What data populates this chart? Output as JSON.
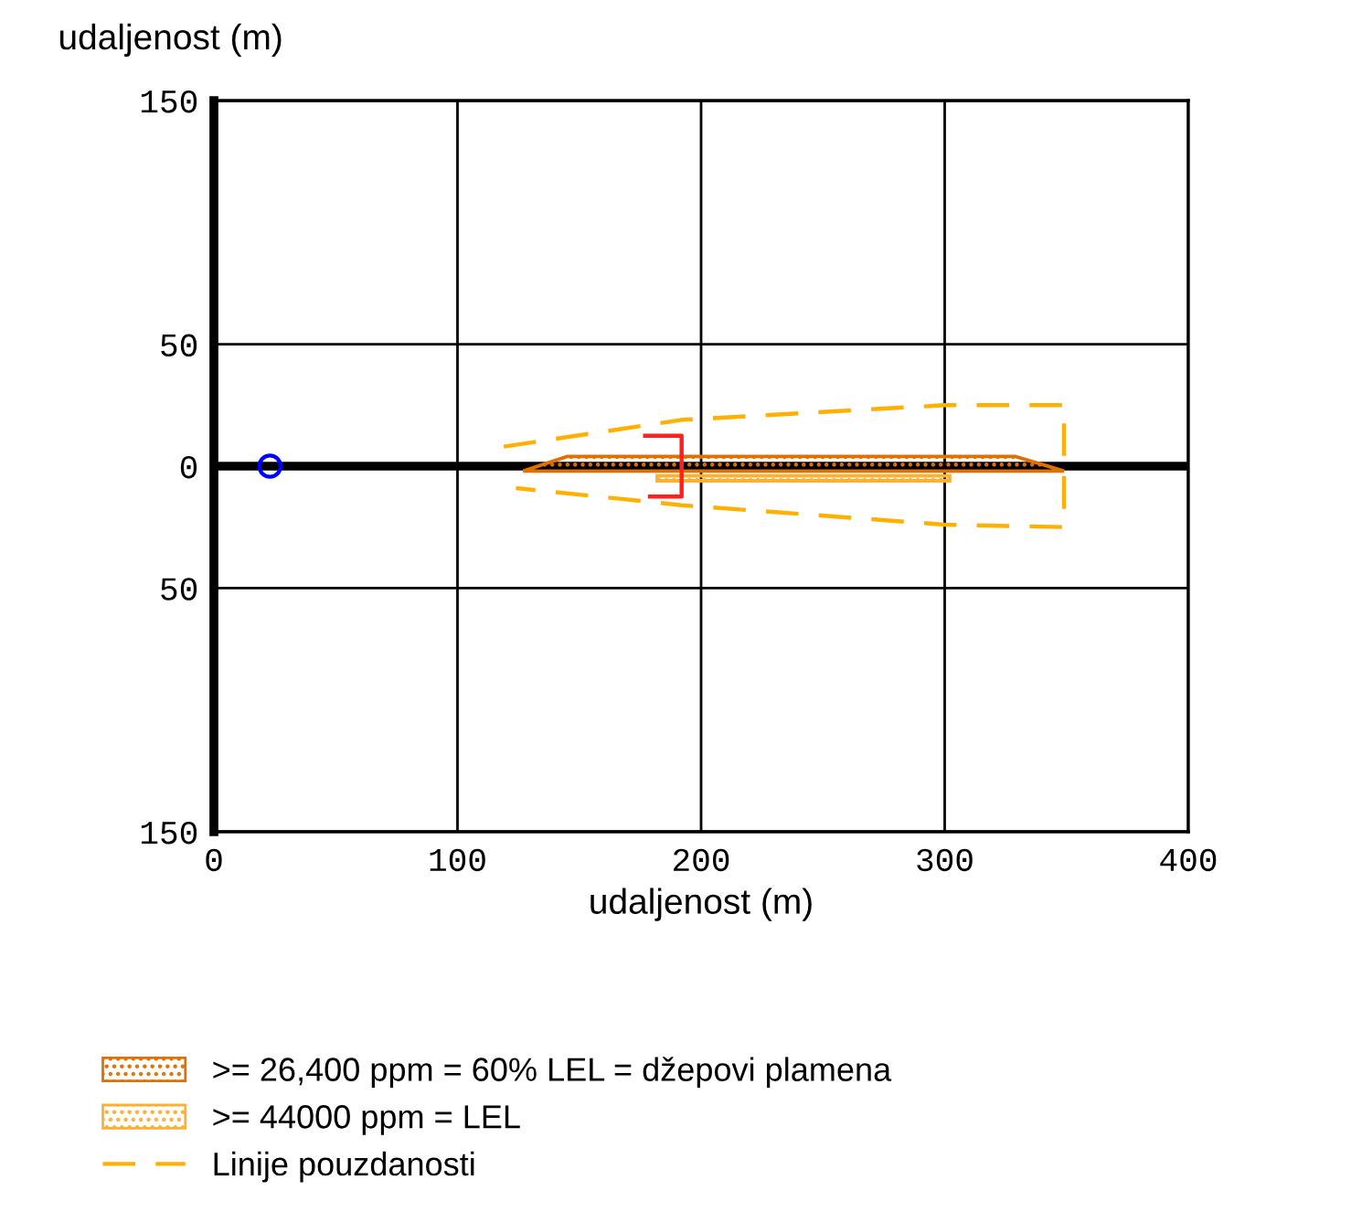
{
  "chart_data": {
    "type": "line",
    "xlabel": "udaljenost (m)",
    "ylabel": "udaljenost (m)",
    "xlim": [
      0,
      400
    ],
    "ylim": [
      -150,
      150
    ],
    "xticks": [
      0,
      100,
      200,
      300,
      400
    ],
    "yticks": [
      {
        "value": -150,
        "label": "150"
      },
      {
        "value": -50,
        "label": "50"
      },
      0,
      50,
      150
    ],
    "grid": true,
    "legend": "bottom left",
    "ref_lines": [
      {
        "axis": "y",
        "value": 0,
        "color": "#000000"
      }
    ],
    "series": [
      {
        "name": ">= 26,400 ppm = 60% LEL = džepovi plamena",
        "type": "area",
        "color": "#e07000",
        "x": [
          127,
          145,
          329,
          349,
          127
        ],
        "values": [
          -2,
          4,
          4,
          -2,
          -2
        ]
      },
      {
        "name": ">= 44000 ppm = LEL",
        "type": "area",
        "color": "#ffb030",
        "x": [
          182,
          302,
          302,
          182,
          182
        ],
        "values": [
          -4,
          -4,
          -6,
          -6,
          -4
        ]
      },
      {
        "name": "Linije pouzdanosti",
        "color": "#ffb000",
        "line_style": "dashed",
        "x": [
          119,
          192,
          300,
          349,
          349,
          300,
          192,
          124
        ],
        "values": [
          8,
          19,
          25,
          25,
          -25,
          -24,
          -16,
          -9
        ]
      },
      {
        "color": "#ff2020",
        "line_style": "solid",
        "x": [
          177,
          192,
          192,
          179
        ],
        "values": [
          12.5,
          12.5,
          -12.5,
          -12.5
        ]
      },
      {
        "type": "scatter",
        "color": "#0000ff",
        "marker": "circle",
        "x": [
          23
        ],
        "values": [
          0
        ]
      }
    ]
  }
}
